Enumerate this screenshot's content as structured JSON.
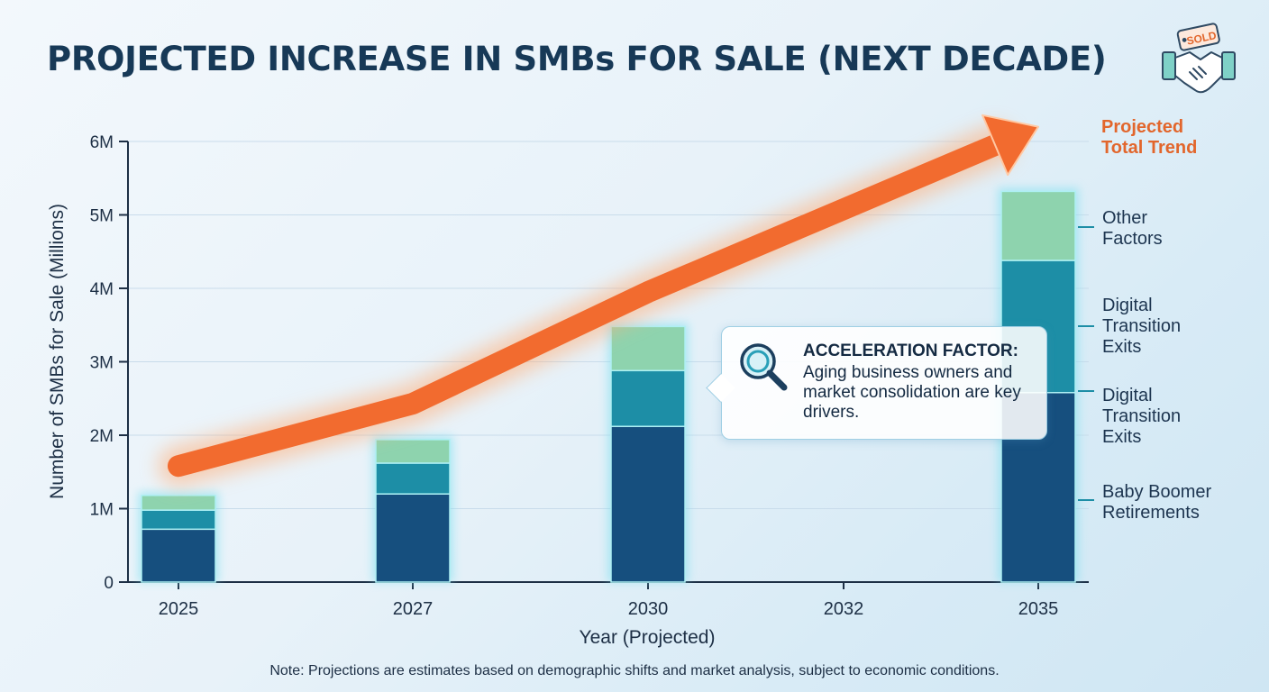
{
  "title": "PROJECTED INCREASE IN SMBs FOR SALE (NEXT DECADE)",
  "logo": {
    "icon": "handshake-sold-tag-icon",
    "tag_text": "SOLD"
  },
  "chart_data": {
    "type": "bar",
    "stacked": true,
    "x_categories": [
      "2025",
      "2027",
      "2030",
      "2032",
      "2035"
    ],
    "bar_years": [
      "2025",
      "2027",
      "2030",
      "2035"
    ],
    "series": [
      {
        "name": "Baby Boomer Retirements",
        "values": [
          0.72,
          1.2,
          2.12,
          2.58
        ],
        "color": "#164f7e"
      },
      {
        "name": "Digital Transition Exits",
        "values": [
          0.26,
          0.42,
          0.76,
          1.8
        ],
        "color": "#1d8ea6"
      },
      {
        "name": "Other Factors",
        "values": [
          0.2,
          0.32,
          0.6,
          0.94
        ],
        "color": "#8ed3ae"
      }
    ],
    "segment_labels": [
      "Baby Boomer Retirements",
      "Digital Transition Exits",
      "Digital Transition Exits",
      "Other Factors"
    ],
    "trend": {
      "name": "Projected Total Trend",
      "points": [
        [
          "2025",
          1.58
        ],
        [
          "2027",
          2.43
        ],
        [
          "2030",
          3.95
        ],
        [
          "2035",
          6.2
        ]
      ],
      "color": "#f26b2f"
    },
    "y_ticks": [
      "0",
      "1M",
      "2M",
      "3M",
      "4M",
      "5M",
      "6M"
    ],
    "ylim": [
      0,
      6
    ],
    "xlabel": "Year (Projected)",
    "ylabel": "Number of SMBs for Sale (Millions)",
    "grid": true
  },
  "callout": {
    "heading": "ACCELERATION FACTOR:",
    "body": "Aging business owners and market consolidation are key drivers.",
    "icon": "magnifying-glass-icon"
  },
  "note": "Note: Projections are estimates based on demographic shifts and market analysis, subject to economic conditions."
}
